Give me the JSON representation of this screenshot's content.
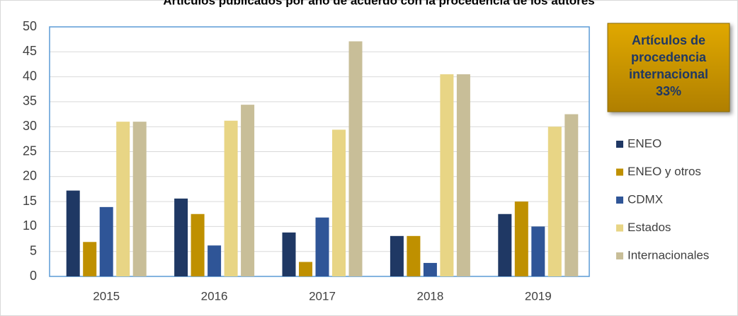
{
  "chart_data": {
    "type": "bar",
    "title": "Artículos publicados por año de acuerdo con la procedencia de los autores",
    "categories": [
      "2015",
      "2016",
      "2017",
      "2018",
      "2019"
    ],
    "series": [
      {
        "name": "ENEO",
        "color": "#1f3864",
        "values": [
          17.2,
          15.6,
          8.8,
          8.1,
          12.5
        ]
      },
      {
        "name": "ENEO y otros",
        "color": "#bf9000",
        "values": [
          6.9,
          12.5,
          2.9,
          8.1,
          15
        ]
      },
      {
        "name": "CDMX",
        "color": "#2f5597",
        "values": [
          13.9,
          6.2,
          11.8,
          2.7,
          10
        ]
      },
      {
        "name": "Estados",
        "color": "#e8d585",
        "values": [
          31,
          31.2,
          29.4,
          40.5,
          30
        ]
      },
      {
        "name": "Internacionales",
        "color": "#c8be98",
        "values": [
          31,
          34.4,
          47.1,
          40.5,
          32.5
        ]
      }
    ],
    "annotation": [
      "Artículos de",
      "procedencia",
      "internacional",
      "33%"
    ],
    "ylim": [
      0,
      50
    ],
    "yticks": [
      0,
      5,
      10,
      15,
      20,
      25,
      30,
      35,
      40,
      45,
      50
    ],
    "grid": true,
    "legend": "right"
  }
}
